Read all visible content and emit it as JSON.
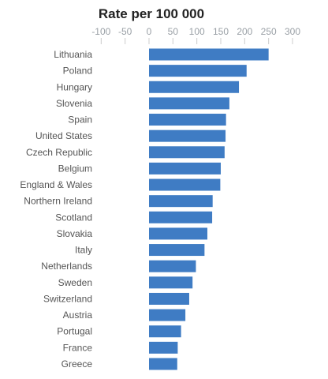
{
  "chart_data": {
    "type": "bar",
    "orientation": "horizontal",
    "title": "Rate per 100 000",
    "xlabel": "",
    "ylabel": "",
    "xlim": [
      -100,
      300
    ],
    "x_ticks": [
      -100,
      -50,
      0,
      50,
      100,
      150,
      200,
      250,
      300
    ],
    "categories": [
      "Lithuania",
      "Poland",
      "Hungary",
      "Slovenia",
      "Spain",
      "United States",
      "Czech Republic",
      "Belgium",
      "England & Wales",
      "Northern Ireland",
      "Scotland",
      "Slovakia",
      "Italy",
      "Netherlands",
      "Sweden",
      "Switzerland",
      "Austria",
      "Portugal",
      "France",
      "Greece"
    ],
    "values": [
      250,
      204,
      188,
      168,
      161,
      160,
      158,
      150,
      149,
      133,
      132,
      122,
      116,
      98,
      91,
      84,
      76,
      67,
      60,
      59
    ],
    "colors": {
      "bar": "#3f7cc4",
      "tick_text": "#9aa0a6",
      "category_text": "#555555",
      "title_text": "#222222",
      "tick_mark": "#cccccc"
    }
  }
}
